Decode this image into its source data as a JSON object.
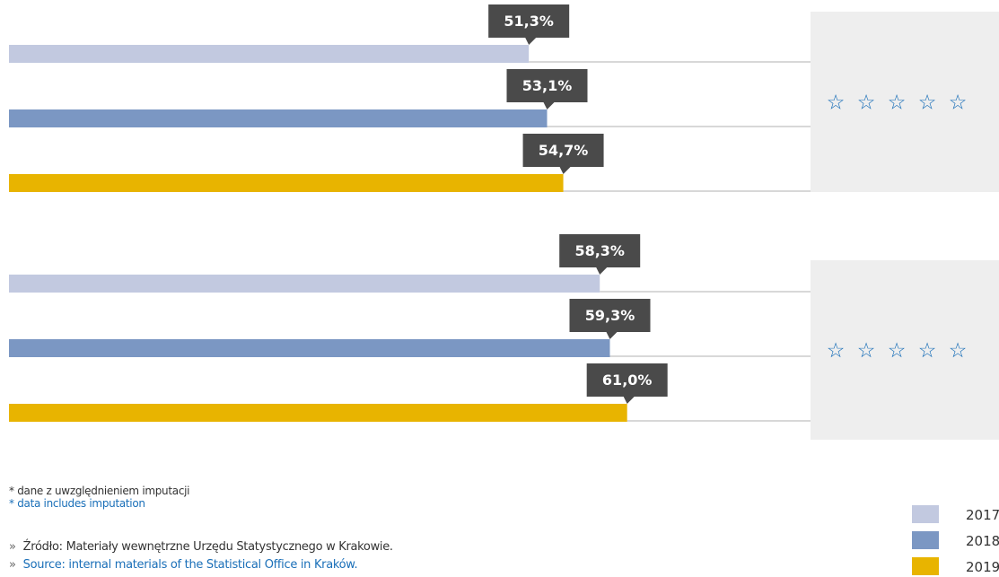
{
  "chart_data": {
    "type": "bar",
    "orientation": "horizontal",
    "xlim": [
      0,
      100
    ],
    "groups": [
      {
        "rating_stars": 5,
        "bars": [
          {
            "series": "2017",
            "value": 51.3,
            "label": "51,3%"
          },
          {
            "series": "2018",
            "value": 53.1,
            "label": "53,1%"
          },
          {
            "series": "2019",
            "value": 54.7,
            "label": "54,7%"
          }
        ]
      },
      {
        "rating_stars": 5,
        "bars": [
          {
            "series": "2017",
            "value": 58.3,
            "label": "58,3%"
          },
          {
            "series": "2018",
            "value": 59.3,
            "label": "59,3%"
          },
          {
            "series": "2019",
            "value": 61.0,
            "label": "61,0%"
          }
        ]
      }
    ],
    "legend": {
      "placement": "bottom-right",
      "entries": [
        {
          "name": "2017",
          "color": "#c2c9e0"
        },
        {
          "name": "2018",
          "color": "#7b97c3"
        },
        {
          "name": "2019",
          "color": "#e8b400"
        }
      ]
    }
  },
  "colors": {
    "label_box": "#4a4a4a",
    "guide_line": "#b0b0b0",
    "rating_panel": "#eeeeee",
    "star": "#1a6fb8"
  },
  "star_glyph": "☆",
  "notes": {
    "pl": "* dane z uwzględnieniem imputacji",
    "en": "* data includes imputation"
  },
  "sources": {
    "bullet": "»",
    "pl": "Źródło: Materiały wewnętrzne Urzędu Statystycznego w Krakowie.",
    "en": "Source: internal materials of the Statistical Office in Kraków."
  }
}
